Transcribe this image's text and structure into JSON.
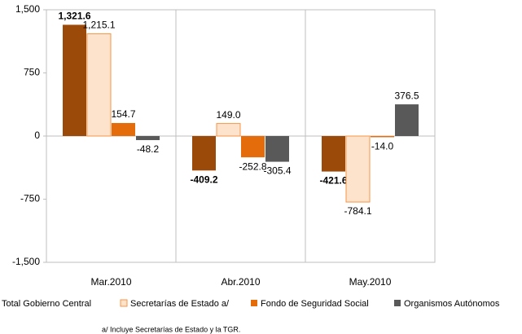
{
  "chart_data": {
    "type": "bar",
    "categories": [
      "Mar.2010",
      "Abr.2010",
      "May.2010"
    ],
    "series": [
      {
        "name": "Total Gobierno Central",
        "color": "#9c4a0a",
        "values": [
          1321.6,
          -409.2,
          -421.6
        ],
        "value_labels": [
          "1,321.6",
          "-409.2",
          "-421.6"
        ],
        "bold": true
      },
      {
        "name": "Secretarías de Estado a/",
        "color": "#fde3cc",
        "edgecolor": "#f79646",
        "values": [
          1215.1,
          149.0,
          -784.1
        ],
        "value_labels": [
          "1,215.1",
          "149.0",
          "-784.1"
        ]
      },
      {
        "name": "Fondo de Seguridad Social",
        "color": "#e46c0a",
        "values": [
          154.7,
          -252.8,
          -14.0
        ],
        "value_labels": [
          "154.7",
          "-252.8",
          "-14.0"
        ]
      },
      {
        "name": "Organismos Autónomos",
        "color": "#595959",
        "values": [
          -48.2,
          -305.4,
          376.5
        ],
        "value_labels": [
          "-48.2",
          "-305.4",
          "376.5"
        ]
      }
    ],
    "ylim": [
      -1500,
      1500
    ],
    "yticks": [
      {
        "value": -1500,
        "label": "-1,500"
      },
      -750,
      0,
      750,
      {
        "value": 1500,
        "label": "1,500"
      }
    ],
    "note": "a/ Incluye Secretarías de Estado y la TGR."
  }
}
